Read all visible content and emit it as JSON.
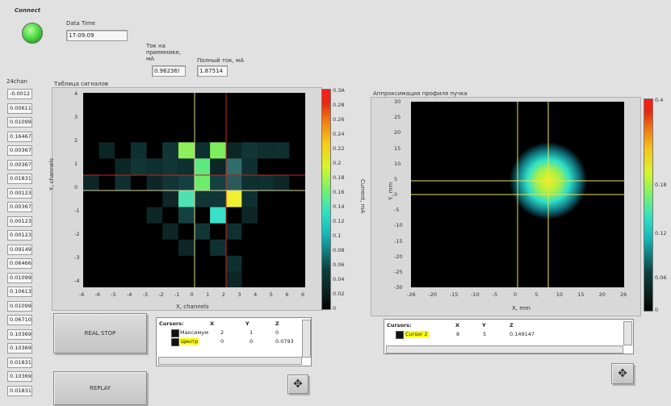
{
  "connect": {
    "label": "Connect",
    "state_color": "#3fd03a"
  },
  "datetime": {
    "label": "Data Time",
    "value": "17:09:09"
  },
  "tok_target": {
    "label": "Ток на\nприемнике,\nмА",
    "value": "0.96236!"
  },
  "tok_total": {
    "label": "Полный ток, мА",
    "value": "1.87514"
  },
  "channels": {
    "label": "24chan",
    "values": [
      "-0.0012",
      "0.006118",
      "0.01099",
      "0.16467",
      "0.00367",
      "0.00367",
      "0.01831",
      "0.00123",
      "0.00367",
      "0.00123",
      "0.00123",
      "0.09149",
      "0.06466",
      "0.01099",
      "0.10613",
      "0.01099",
      "0.06710",
      "0.10369",
      "0.10369",
      "0.01831",
      "0.10369",
      "0.01831"
    ]
  },
  "left_plot": {
    "title": "Таблица сигналов",
    "xlabel": "X, channels",
    "ylabel": "Y, channels",
    "x_ticks": [
      "-6",
      "-6",
      "-5",
      "-4",
      "-3",
      "-2",
      "-1",
      "0",
      "1",
      "2",
      "3",
      "4",
      "5",
      "6",
      "6"
    ],
    "y_ticks": [
      "4",
      "3",
      "2",
      "1",
      "0",
      "-1",
      "-2",
      "-3",
      "-4"
    ],
    "cbar_label": "Current, mA",
    "cbar_ticks": [
      "0.3A",
      "0.28",
      "0.26",
      "0.24",
      "0.22",
      "0.2",
      "0.18",
      "0.16",
      "0.14",
      "0.12",
      "0.1",
      "0.08",
      "0.06",
      "0.04",
      "0.02",
      "0"
    ]
  },
  "right_plot": {
    "title": "Аппроксимация профиля пучка",
    "xlabel": "X, mm",
    "ylabel": "Y, mm",
    "x_ticks": [
      "-26",
      "-20",
      "-15",
      "-10",
      "-5",
      "0",
      "5",
      "10",
      "15",
      "20",
      "26"
    ],
    "y_ticks": [
      "30",
      "25",
      "20",
      "15",
      "10",
      "5",
      "0",
      "-5",
      "-10",
      "-15",
      "-20",
      "-25",
      "-30"
    ],
    "cbar_ticks": [
      "0.4",
      "0.18",
      "0.12",
      "0.06",
      "0"
    ]
  },
  "buttons": {
    "real_stop": "REAL STOP",
    "replay": "REPLAY"
  },
  "left_cursors": {
    "headers": [
      "Cursors:",
      "X",
      "Y",
      "Z"
    ],
    "rows": [
      {
        "name": "Максимум",
        "x": "2",
        "y": "1",
        "z": "0"
      },
      {
        "name": "Центр",
        "x": "0",
        "y": "0",
        "z": "0.0793"
      }
    ]
  },
  "right_cursors": {
    "headers": [
      "Cursors:",
      "X",
      "Y",
      "Z"
    ],
    "rows": [
      {
        "name": "Cursor 2",
        "x": "8",
        "y": "5",
        "z": "0.149147"
      }
    ]
  },
  "colors": {
    "highlight": "#ffff00",
    "cursor_yellow": "#e8e650",
    "cursor_red": "#d02020",
    "cursor_white": "#d8d8a0"
  }
}
